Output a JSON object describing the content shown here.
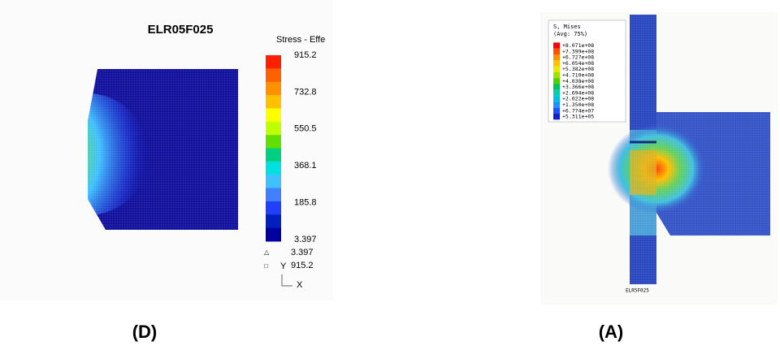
{
  "panel_d": {
    "title": "ELR05F025",
    "legend_title": "Stress - Effe",
    "colorbar_labels": [
      "915.2",
      "732.8",
      "550.5",
      "368.1",
      "185.8",
      "3.397"
    ],
    "min_label": "3.397",
    "max_label": "915.2",
    "axis_y": "Y",
    "axis_x": "X",
    "panel_label": "(D)"
  },
  "panel_a": {
    "legend_title": "S, Mises",
    "legend_subtitle": "(Avg: 75%)",
    "legend_values": [
      "+8.071e+08",
      "+7.399e+08",
      "+6.727e+08",
      "+6.054e+08",
      "+5.382e+08",
      "+4.710e+08",
      "+4.038e+08",
      "+3.366e+08",
      "+2.694e+08",
      "+2.022e+08",
      "+1.350e+08",
      "+6.774e+07",
      "+5.311e+05"
    ],
    "model_label": "ELR5F025",
    "panel_label": "(A)"
  }
}
